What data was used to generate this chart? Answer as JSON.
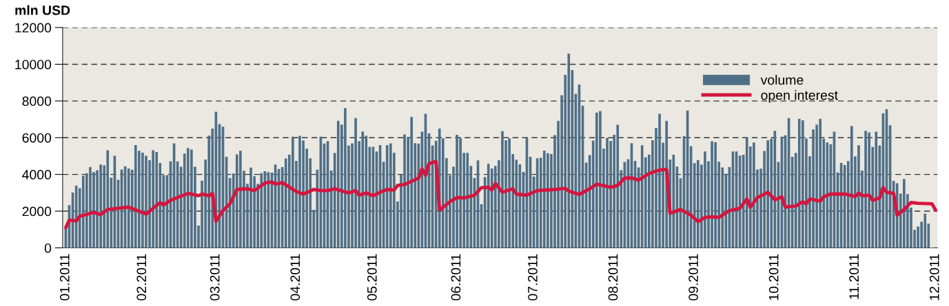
{
  "chart_data": {
    "type": "bar",
    "ylabel": "mln USD",
    "categories": [
      "01.2011",
      null,
      null,
      null,
      null,
      null,
      null,
      null,
      null,
      null,
      null,
      null,
      null,
      null,
      null,
      null,
      null,
      null,
      null,
      null,
      null,
      null,
      "02.2011",
      null,
      null,
      null,
      null,
      null,
      null,
      null,
      null,
      null,
      null,
      null,
      null,
      null,
      null,
      null,
      null,
      null,
      null,
      null,
      null,
      "03.2011",
      null,
      null,
      null,
      null,
      null,
      null,
      null,
      null,
      null,
      null,
      null,
      null,
      null,
      null,
      null,
      null,
      null,
      null,
      null,
      null,
      null,
      null,
      "04.2011",
      null,
      null,
      null,
      null,
      null,
      null,
      null,
      null,
      null,
      null,
      null,
      null,
      null,
      null,
      null,
      null,
      null,
      null,
      null,
      null,
      null,
      "05.2011",
      null,
      null,
      null,
      null,
      null,
      null,
      null,
      null,
      null,
      null,
      null,
      null,
      null,
      null,
      null,
      null,
      null,
      null,
      null,
      null,
      null,
      null,
      null,
      "06.2011",
      null,
      null,
      null,
      null,
      null,
      null,
      null,
      null,
      null,
      null,
      null,
      null,
      null,
      null,
      null,
      null,
      null,
      null,
      null,
      null,
      null,
      "07.2011",
      null,
      null,
      null,
      null,
      null,
      null,
      null,
      null,
      null,
      null,
      null,
      null,
      null,
      null,
      null,
      null,
      null,
      null,
      null,
      null,
      null,
      null,
      "08.2011",
      null,
      null,
      null,
      null,
      null,
      null,
      null,
      null,
      null,
      null,
      null,
      null,
      null,
      null,
      null,
      null,
      null,
      null,
      null,
      null,
      null,
      null,
      "09.2011",
      null,
      null,
      null,
      null,
      null,
      null,
      null,
      null,
      null,
      null,
      null,
      null,
      null,
      null,
      null,
      null,
      null,
      null,
      null,
      null,
      null,
      null,
      "10.2011",
      null,
      null,
      null,
      null,
      null,
      null,
      null,
      null,
      null,
      null,
      null,
      null,
      null,
      null,
      null,
      null,
      null,
      null,
      null,
      null,
      null,
      null,
      "11.2011",
      null,
      null,
      null,
      null,
      null,
      null,
      null,
      null,
      null,
      null,
      null,
      null,
      null,
      null,
      null,
      null,
      null,
      null,
      null,
      null,
      null,
      null,
      "12.2011"
    ],
    "series": [
      {
        "name": "volume",
        "color": "#4f6f88",
        "values": [
          1060,
          2330,
          3010,
          3390,
          3250,
          3920,
          4060,
          4400,
          4130,
          4230,
          4540,
          4490,
          5320,
          3820,
          5020,
          3710,
          4270,
          4450,
          4320,
          4260,
          5600,
          5290,
          5190,
          5020,
          4770,
          5320,
          5220,
          4620,
          3960,
          3960,
          4720,
          5690,
          4710,
          4420,
          5140,
          5440,
          5350,
          4420,
          1220,
          3660,
          4810,
          6110,
          6500,
          7410,
          6740,
          6600,
          4960,
          3800,
          4050,
          5090,
          5290,
          4200,
          3490,
          4370,
          3900,
          3490,
          4070,
          4170,
          4130,
          4100,
          4540,
          4300,
          4400,
          4870,
          5070,
          6060,
          4740,
          6100,
          5850,
          5400,
          4880,
          2070,
          4260,
          6060,
          5680,
          5810,
          4210,
          5170,
          6920,
          6710,
          7610,
          5570,
          5690,
          7070,
          5810,
          6340,
          6100,
          5500,
          5500,
          5250,
          5600,
          4690,
          5600,
          5690,
          5180,
          2530,
          4010,
          6180,
          6040,
          7130,
          5700,
          5680,
          6330,
          7300,
          6230,
          5580,
          5830,
          6500,
          5960,
          4890,
          3950,
          4420,
          6160,
          5960,
          5180,
          5180,
          4460,
          3800,
          4760,
          2380,
          3860,
          4580,
          4320,
          4460,
          4770,
          6360,
          5860,
          5960,
          5110,
          4800,
          4550,
          4140,
          5960,
          4960,
          3880,
          4880,
          4900,
          5300,
          5160,
          5110,
          6140,
          6920,
          8310,
          9420,
          10580,
          9680,
          8390,
          8890,
          7740,
          4640,
          5050,
          5840,
          7370,
          7450,
          5410,
          5990,
          5820,
          6160,
          6700,
          4230,
          4680,
          4830,
          5700,
          4740,
          4380,
          5590,
          4930,
          5080,
          5860,
          6520,
          7300,
          5730,
          6920,
          4810,
          5070,
          4430,
          3790,
          6080,
          7480,
          5540,
          4610,
          4780,
          4530,
          5250,
          4720,
          5800,
          5760,
          4690,
          4380,
          4030,
          4400,
          5250,
          5250,
          5030,
          5070,
          5980,
          5520,
          5740,
          4270,
          4310,
          5280,
          5860,
          5940,
          6370,
          4680,
          6060,
          6130,
          7070,
          4960,
          5170,
          7030,
          6950,
          5950,
          4990,
          6450,
          6710,
          7030,
          5930,
          5740,
          5640,
          6330,
          4110,
          4620,
          4510,
          4730,
          6640,
          4980,
          5590,
          4210,
          6370,
          6290,
          5490,
          6330,
          5580,
          7330,
          7550,
          6670,
          3650,
          3520,
          2960,
          3750,
          2930,
          2200,
          980,
          1160,
          1420,
          1860,
          1320,
          null,
          null
        ]
      },
      {
        "name": "open interest",
        "type": "line",
        "color": "#d4163f",
        "values": [
          1100,
          1510,
          null,
          1470,
          1720,
          null,
          null,
          null,
          1930,
          null,
          1810,
          null,
          2090,
          null,
          null,
          null,
          null,
          null,
          2220,
          null,
          null,
          null,
          null,
          1840,
          null,
          null,
          null,
          2470,
          2340,
          null,
          2590,
          null,
          null,
          null,
          null,
          2970,
          null,
          null,
          2840,
          2930,
          null,
          2840,
          2970,
          1450,
          null,
          2030,
          null,
          2400,
          null,
          3180,
          null,
          null,
          3220,
          null,
          3120,
          null,
          null,
          3530,
          null,
          3590,
          3480,
          null,
          3550,
          null,
          null,
          null,
          3070,
          null,
          2930,
          null,
          null,
          3180,
          null,
          3120,
          null,
          3120,
          null,
          3220,
          null,
          null,
          null,
          2990,
          null,
          3120,
          2870,
          null,
          2990,
          null,
          2840,
          null,
          3030,
          null,
          3180,
          null,
          3150,
          3400,
          null,
          3450,
          null,
          null,
          null,
          3800,
          4300,
          3960,
          4590,
          null,
          4710,
          2060,
          null,
          null,
          2510,
          null,
          2740,
          null,
          2720,
          null,
          null,
          2870,
          null,
          3280,
          null,
          3300,
          3150,
          3500,
          null,
          3030,
          null,
          null,
          3220,
          2930,
          null,
          null,
          2870,
          null,
          null,
          3120,
          null,
          null,
          null,
          null,
          3180,
          null,
          null,
          3240,
          3090,
          null,
          null,
          2910,
          null,
          null,
          3220,
          null,
          3470,
          null,
          null,
          null,
          3300,
          null,
          3400,
          null,
          3800,
          null,
          3810,
          null,
          3690,
          null,
          null,
          4050,
          null,
          null,
          4240,
          null,
          4270,
          1880,
          null,
          null,
          2090,
          null,
          null,
          1780,
          null,
          1430,
          null,
          1660,
          null,
          1690,
          null,
          1660,
          null,
          null,
          2030,
          null,
          null,
          2160,
          null,
          2660,
          2220,
          null,
          2740,
          null,
          null,
          3030,
          null,
          2620,
          null,
          2780,
          2220,
          null,
          null,
          2280,
          null,
          2510,
          2400,
          2660,
          null,
          null,
          2550,
          2780,
          null,
          2940,
          null,
          null,
          null,
          2930,
          null,
          null,
          2800,
          2990,
          2840,
          null,
          2870,
          2590,
          null,
          2720,
          3280,
          3030,
          null,
          2970,
          1780,
          null,
          2090,
          null,
          2470,
          null,
          2430,
          null,
          null,
          null,
          2400,
          2060
        ]
      }
    ],
    "ylim": [
      0,
      12000
    ],
    "yticks": [
      0,
      2000,
      4000,
      6000,
      8000,
      10000,
      12000
    ],
    "grid": "y",
    "legend": "top right"
  }
}
